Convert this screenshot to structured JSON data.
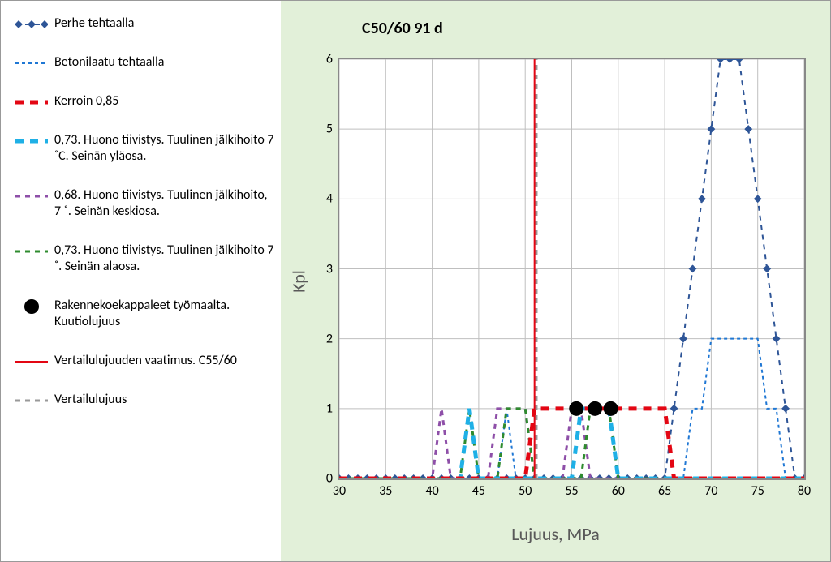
{
  "chart": {
    "title": "C50/60 91 d",
    "xlabel": "Lujuus, MPa",
    "ylabel": "Kpl",
    "xlim": [
      30,
      80
    ],
    "ylim": [
      0,
      6
    ],
    "xtick_step": 5,
    "ytick_step": 1,
    "background": "#e2f0d9",
    "plot_bg": "#ffffff",
    "grid_color": "#bfbfbf",
    "border_color": "#888888",
    "tick_fontsize": 18,
    "label_fontsize": 22,
    "title_fontsize": 20
  },
  "legend": [
    {
      "label": "Perhe tehtaalla",
      "style_ref": "s1"
    },
    {
      "label": "Betonilaatu tehtaalla",
      "style_ref": "s2"
    },
    {
      "label": "Kerroin 0,85",
      "style_ref": "s3"
    },
    {
      "label": "0,73. Huono tiivistys. Tuulinen jälkihoito 7 ˚C. Seinän yläosa.",
      "style_ref": "s4"
    },
    {
      "label": "0,68. Huono tiivistys. Tuulinen jälkihoito, 7 ˚. Seinän keskiosa.",
      "style_ref": "s5"
    },
    {
      "label": "0,73. Huono tiivistys. Tuulinen jälkihoito 7 ˚. Seinän alaosa.",
      "style_ref": "s6"
    },
    {
      "label": "Rakennekoekappaleet työmaalta. Kuutiolujuus",
      "style_ref": "s7"
    },
    {
      "label": "Vertailulujuuden vaatimus. C55/60",
      "style_ref": "s8"
    },
    {
      "label": "Vertailulujuus",
      "style_ref": "s9"
    }
  ],
  "styles": {
    "s1": {
      "type": "line-marker",
      "color": "#2e5597",
      "width": 2,
      "dash": "6,6",
      "marker": "diamond",
      "marker_size": 5
    },
    "s2": {
      "type": "line",
      "color": "#1f77d4",
      "width": 2,
      "dash": "4,4"
    },
    "s3": {
      "type": "line",
      "color": "#e30613",
      "width": 5,
      "dash": "10,8"
    },
    "s4": {
      "type": "line",
      "color": "#1fb0e6",
      "width": 5,
      "dash": "10,8"
    },
    "s5": {
      "type": "line",
      "color": "#8e4fa8",
      "width": 3,
      "dash": "6,6"
    },
    "s6": {
      "type": "line",
      "color": "#2e8b2e",
      "width": 3,
      "dash": "6,6"
    },
    "s7": {
      "type": "marker",
      "color": "#000000",
      "marker": "circle",
      "marker_size": 9
    },
    "s8": {
      "type": "line",
      "color": "#e30613",
      "width": 2,
      "dash": ""
    },
    "s9": {
      "type": "line",
      "color": "#999999",
      "width": 3,
      "dash": "6,6"
    }
  },
  "series": {
    "s1": {
      "x": [
        30,
        31,
        32,
        33,
        34,
        35,
        36,
        37,
        38,
        39,
        40,
        41,
        42,
        43,
        44,
        45,
        46,
        47,
        48,
        49,
        50,
        51,
        52,
        53,
        54,
        55,
        56,
        57,
        58,
        59,
        60,
        61,
        62,
        63,
        64,
        65,
        66,
        67,
        68,
        69,
        70,
        71,
        72,
        73,
        74,
        75,
        76,
        77,
        78,
        79,
        80
      ],
      "y": [
        0,
        0,
        0,
        0,
        0,
        0,
        0,
        0,
        0,
        0,
        0,
        0,
        0,
        0,
        0,
        0,
        0,
        0,
        0,
        0,
        0,
        0,
        0,
        0,
        0,
        0,
        0,
        0,
        0,
        0,
        0,
        0,
        0,
        0,
        0,
        0,
        1,
        2,
        3,
        4,
        5,
        6,
        6,
        6,
        5,
        4,
        3,
        2,
        1,
        0,
        0
      ]
    },
    "s2": {
      "x": [
        30,
        47,
        48,
        49,
        64,
        65,
        66,
        67,
        68,
        69,
        70,
        71,
        72,
        73,
        74,
        75,
        76,
        77,
        78,
        80
      ],
      "y": [
        0,
        0,
        1,
        0,
        0,
        0,
        0,
        0,
        1,
        1,
        2,
        2,
        2,
        2,
        2,
        2,
        1,
        1,
        0,
        0
      ]
    },
    "s3": {
      "x": [
        30,
        50,
        51,
        52,
        53,
        54,
        55,
        56,
        57,
        58,
        59,
        60,
        61,
        62,
        63,
        64,
        65,
        66,
        80
      ],
      "y": [
        0,
        0,
        1,
        1,
        1,
        1,
        1,
        1,
        1,
        1,
        1,
        1,
        1,
        1,
        1,
        1,
        1,
        0,
        0
      ]
    },
    "s4": {
      "x": [
        30,
        43,
        44,
        45,
        55,
        56,
        57,
        58,
        59,
        60,
        80
      ],
      "y": [
        0,
        0,
        1,
        0,
        0,
        1,
        1,
        1,
        1,
        0,
        0
      ]
    },
    "s5": {
      "x": [
        30,
        40,
        41,
        42,
        46,
        47,
        48,
        49,
        50,
        51,
        54,
        55,
        56,
        57,
        80
      ],
      "y": [
        0,
        0,
        1,
        0,
        0,
        1,
        1,
        1,
        1,
        0,
        0,
        1,
        1,
        0,
        0
      ]
    },
    "s6": {
      "x": [
        30,
        43,
        44,
        45,
        47,
        48,
        49,
        50,
        51,
        56,
        57,
        58,
        59,
        60,
        80
      ],
      "y": [
        0,
        0,
        1,
        0,
        0,
        1,
        1,
        1,
        0,
        0,
        1,
        1,
        1,
        0,
        0
      ]
    },
    "s7": {
      "x": [
        55.5,
        57.5,
        59.2
      ],
      "y": [
        1,
        1,
        1
      ]
    },
    "s8": {
      "x": [
        51,
        51
      ],
      "y": [
        0,
        6
      ]
    },
    "s9": {
      "x": [
        51.2,
        51.2
      ],
      "y": [
        0,
        6
      ]
    }
  }
}
